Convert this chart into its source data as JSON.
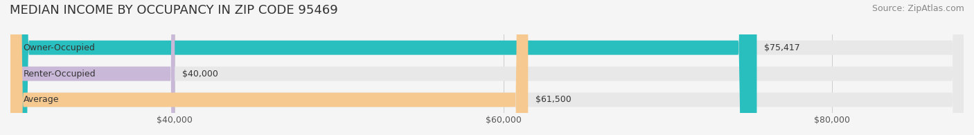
{
  "title": "MEDIAN INCOME BY OCCUPANCY IN ZIP CODE 95469",
  "source": "Source: ZipAtlas.com",
  "categories": [
    "Owner-Occupied",
    "Renter-Occupied",
    "Average"
  ],
  "values": [
    75417,
    40000,
    61500
  ],
  "value_labels": [
    "$75,417",
    "$40,000",
    "$61,500"
  ],
  "bar_colors": [
    "#2abfbf",
    "#c9b8d8",
    "#f5c990"
  ],
  "track_color": "#e8e8e8",
  "xlim_min": 30000,
  "xlim_max": 88000,
  "xtick_values": [
    40000,
    60000,
    80000
  ],
  "xtick_labels": [
    "$40,000",
    "$60,000",
    "$80,000"
  ],
  "title_fontsize": 13,
  "source_fontsize": 9,
  "label_fontsize": 9,
  "value_fontsize": 9,
  "bar_height": 0.55,
  "background_color": "#f5f5f5"
}
